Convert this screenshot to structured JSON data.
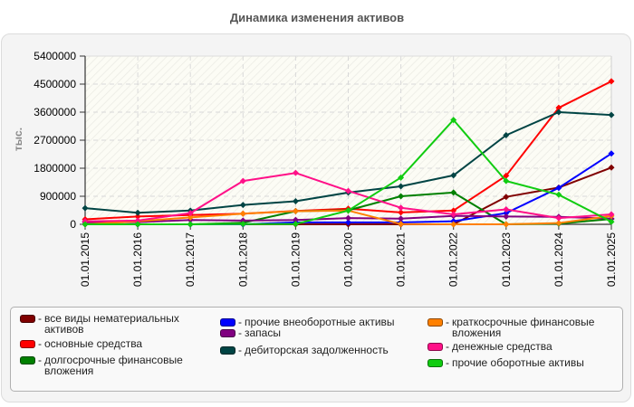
{
  "page": {
    "title": "Динамика изменения активов"
  },
  "legend": {
    "separator": "-"
  },
  "chart_data": {
    "type": "line",
    "title": "Динамика изменения активов",
    "xlabel": "",
    "ylabel": "тыс.",
    "ylim": [
      0,
      5400000
    ],
    "yticks": [
      "0",
      "900000",
      "1800000",
      "2700000",
      "3600000",
      "4500000",
      "5400000"
    ],
    "ytick_values": [
      0,
      900000,
      1800000,
      2700000,
      3600000,
      4500000,
      5400000
    ],
    "categories": [
      "01.01.2015",
      "01.01.2016",
      "01.01.2017",
      "01.01.2018",
      "01.01.2019",
      "01.01.2020",
      "01.01.2021",
      "01.01.2022",
      "01.01.2023",
      "01.01.2024",
      "01.01.2025"
    ],
    "grid": true,
    "legend_position": "bottom",
    "series": [
      {
        "name": "все виды нематериальных активов",
        "color": "#800000",
        "values": [
          0,
          0,
          0,
          0,
          0,
          0,
          0,
          0,
          880000,
          1180000,
          1820000
        ]
      },
      {
        "name": "основные средства",
        "color": "#ff0000",
        "values": [
          160000,
          250000,
          300000,
          340000,
          430000,
          500000,
          380000,
          440000,
          1560000,
          3740000,
          4590000
        ]
      },
      {
        "name": "долгосрочные финансовые вложения",
        "color": "#008000",
        "values": [
          0,
          0,
          0,
          50000,
          420000,
          450000,
          900000,
          1020000,
          0,
          20000,
          170000
        ]
      },
      {
        "name": "прочие внеоборотные активы",
        "color": "#0000ff",
        "values": [
          0,
          0,
          0,
          0,
          60000,
          60000,
          60000,
          100000,
          360000,
          1170000,
          2270000
        ]
      },
      {
        "name": "запасы",
        "color": "#800080",
        "values": [
          60000,
          70000,
          140000,
          120000,
          140000,
          200000,
          180000,
          270000,
          250000,
          240000,
          180000
        ]
      },
      {
        "name": "дебиторская задолженность",
        "color": "#004444",
        "values": [
          520000,
          370000,
          440000,
          620000,
          740000,
          1020000,
          1220000,
          1570000,
          2860000,
          3600000,
          3510000
        ]
      },
      {
        "name": "краткосрочные финансовые вложения",
        "color": "#ff8000",
        "values": [
          0,
          100000,
          220000,
          340000,
          420000,
          440000,
          10000,
          0,
          0,
          40000,
          270000
        ]
      },
      {
        "name": "денежные средства",
        "color": "#ff1088",
        "values": [
          100000,
          120000,
          360000,
          1390000,
          1650000,
          1070000,
          530000,
          320000,
          480000,
          200000,
          320000
        ]
      },
      {
        "name": "прочие оборотные активы",
        "color": "#11cc11",
        "values": [
          0,
          0,
          0,
          10000,
          10000,
          440000,
          1500000,
          3350000,
          1390000,
          950000,
          80000
        ]
      }
    ]
  }
}
